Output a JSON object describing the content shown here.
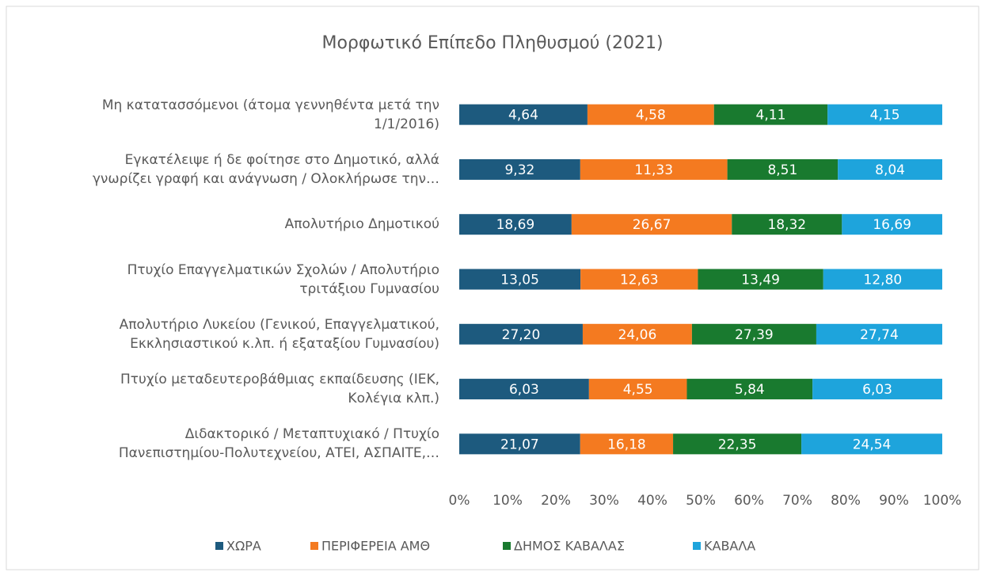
{
  "chart_data": {
    "type": "bar",
    "orientation": "horizontal",
    "stacked": "percent",
    "title": "Μορφωτικό Επίπεδο Πληθυσμού (2021)",
    "categories": [
      "Μη κατατασσόμενοι (άτομα γεννηθέντα μετά την\n1/1/2016)",
      "Εγκατέλειψε ή δε φοίτησε στο  Δημοτικό, αλλά\nγνωρίζει γραφή και ανάγνωση / Ολοκλήρωσε την…",
      "Απολυτήριο Δημοτικού",
      "Πτυχίο Επαγγελματικών Σχολών / Απολυτήριο\nτριτάξιου Γυμνασίου",
      "Απολυτήριο Λυκείου (Γενικού, Επαγγελματικού,\nΕκκλησιαστικού κ.λπ. ή εξαταξίου Γυμνασίου)",
      "Πτυχίο μεταδευτεροβάθμιας εκπαίδευσης (ΙΕΚ,\nΚολέγια κλπ.)",
      "Διδακτορικό / Μεταπτυχιακό / Πτυχίο\nΠανεπιστημίου-Πολυτεχνείου, ΑΤΕΙ, ΑΣΠΑΙΤΕ,…"
    ],
    "series": [
      {
        "name": "ΧΩΡΑ",
        "color": "#1d5a7e",
        "values": [
          4.64,
          9.32,
          18.69,
          13.05,
          27.2,
          6.03,
          21.07
        ],
        "value_labels": [
          "4,64",
          "9,32",
          "18,69",
          "13,05",
          "27,20",
          "6,03",
          "21,07"
        ]
      },
      {
        "name": "ΠΕΡΙΦΕΡΕΙΑ ΑΜΘ",
        "color": "#f47a20",
        "values": [
          4.58,
          11.33,
          26.67,
          12.63,
          24.06,
          4.55,
          16.18
        ],
        "value_labels": [
          "4,58",
          "11,33",
          "26,67",
          "12,63",
          "24,06",
          "4,55",
          "16,18"
        ]
      },
      {
        "name": "ΔΗΜΟΣ ΚΑΒΑΛΑΣ",
        "color": "#197a2f",
        "values": [
          4.11,
          8.51,
          18.32,
          13.49,
          27.39,
          5.84,
          22.35
        ],
        "value_labels": [
          "4,11",
          "8,51",
          "18,32",
          "13,49",
          "27,39",
          "5,84",
          "22,35"
        ]
      },
      {
        "name": "ΚΑΒΑΛΑ",
        "color": "#1ea4dc",
        "values": [
          4.15,
          8.04,
          16.69,
          12.8,
          27.74,
          6.03,
          24.54
        ],
        "value_labels": [
          "4,15",
          "8,04",
          "16,69",
          "12,80",
          "27,74",
          "6,03",
          "24,54"
        ]
      }
    ],
    "xlim": [
      0,
      100
    ],
    "xticks": [
      {
        "value": 0,
        "label": "0%"
      },
      {
        "value": 10,
        "label": "10%"
      },
      {
        "value": 20,
        "label": "20%"
      },
      {
        "value": 30,
        "label": "30%"
      },
      {
        "value": 40,
        "label": "40%"
      },
      {
        "value": 50,
        "label": "50%"
      },
      {
        "value": 60,
        "label": "60%"
      },
      {
        "value": 70,
        "label": "70%"
      },
      {
        "value": 80,
        "label": "80%"
      },
      {
        "value": 90,
        "label": "90%"
      },
      {
        "value": 100,
        "label": "100%"
      }
    ],
    "legend": "bottom"
  }
}
